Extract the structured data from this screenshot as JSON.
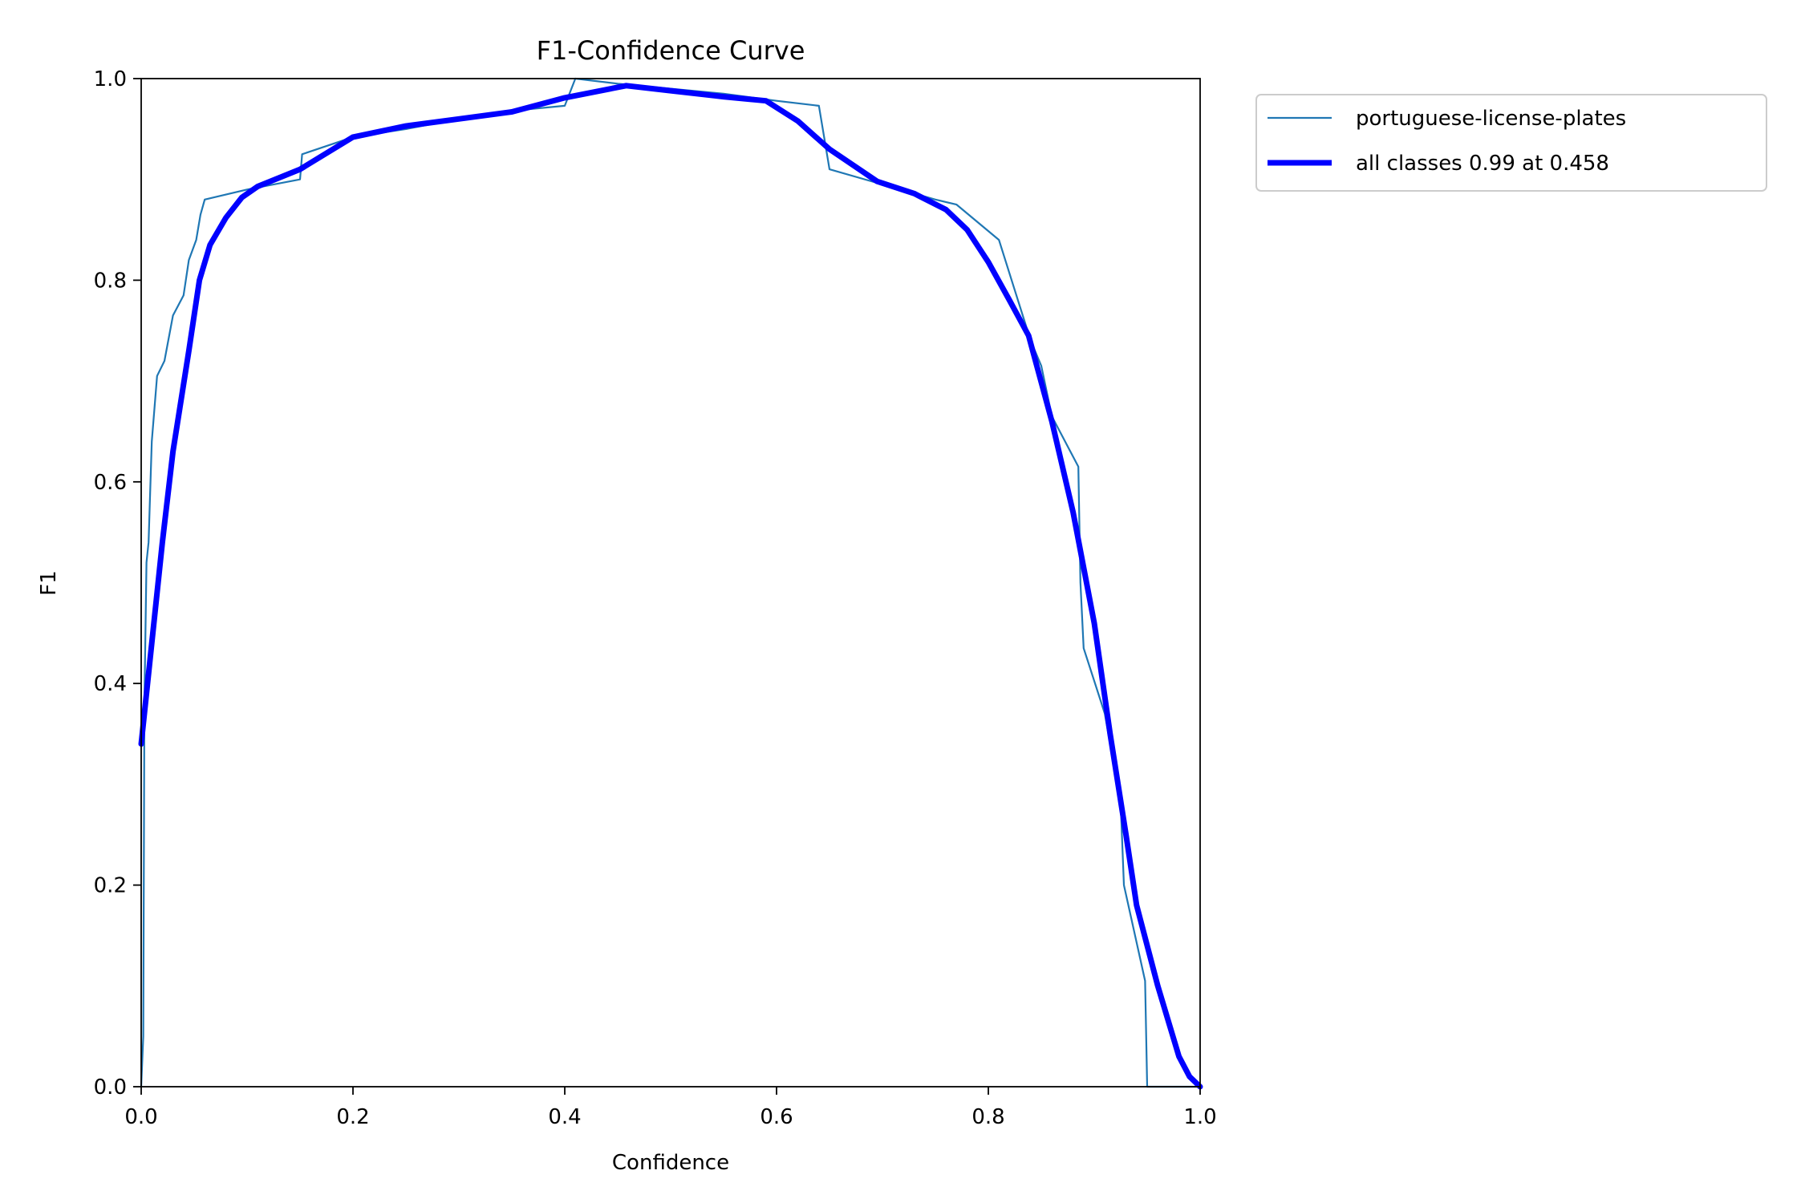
{
  "chart_data": {
    "type": "line",
    "title": "F1-Confidence Curve",
    "xlabel": "Confidence",
    "ylabel": "F1",
    "xlim": [
      0.0,
      1.0
    ],
    "ylim": [
      0.0,
      1.0
    ],
    "xticks": [
      0.0,
      0.2,
      0.4,
      0.6,
      0.8,
      1.0
    ],
    "yticks": [
      0.0,
      0.2,
      0.4,
      0.6,
      0.8,
      1.0
    ],
    "tick_labels_x": [
      "0.0",
      "0.2",
      "0.4",
      "0.6",
      "0.8",
      "1.0"
    ],
    "tick_labels_y": [
      "0.0",
      "0.2",
      "0.4",
      "0.6",
      "0.8",
      "1.0"
    ],
    "grid": false,
    "legend": {
      "placement": "outside-top-right"
    },
    "series": [
      {
        "name": "portuguese-license-plates",
        "color": "#1f77b4",
        "style": "thin",
        "points": [
          [
            0.0,
            0.0
          ],
          [
            0.002,
            0.05
          ],
          [
            0.003,
            0.38
          ],
          [
            0.005,
            0.52
          ],
          [
            0.007,
            0.54
          ],
          [
            0.01,
            0.64
          ],
          [
            0.015,
            0.705
          ],
          [
            0.022,
            0.72
          ],
          [
            0.03,
            0.765
          ],
          [
            0.04,
            0.785
          ],
          [
            0.045,
            0.82
          ],
          [
            0.052,
            0.84
          ],
          [
            0.056,
            0.865
          ],
          [
            0.06,
            0.88
          ],
          [
            0.1,
            0.89
          ],
          [
            0.15,
            0.9
          ],
          [
            0.152,
            0.925
          ],
          [
            0.2,
            0.942
          ],
          [
            0.25,
            0.95
          ],
          [
            0.3,
            0.96
          ],
          [
            0.35,
            0.968
          ],
          [
            0.4,
            0.973
          ],
          [
            0.41,
            1.0
          ],
          [
            0.45,
            0.995
          ],
          [
            0.5,
            0.99
          ],
          [
            0.55,
            0.985
          ],
          [
            0.6,
            0.978
          ],
          [
            0.64,
            0.973
          ],
          [
            0.65,
            0.91
          ],
          [
            0.7,
            0.895
          ],
          [
            0.75,
            0.88
          ],
          [
            0.77,
            0.875
          ],
          [
            0.81,
            0.84
          ],
          [
            0.84,
            0.74
          ],
          [
            0.85,
            0.715
          ],
          [
            0.86,
            0.665
          ],
          [
            0.885,
            0.615
          ],
          [
            0.887,
            0.5
          ],
          [
            0.89,
            0.435
          ],
          [
            0.91,
            0.37
          ],
          [
            0.925,
            0.28
          ],
          [
            0.928,
            0.2
          ],
          [
            0.948,
            0.105
          ],
          [
            0.95,
            0.0
          ],
          [
            1.0,
            0.0
          ]
        ]
      },
      {
        "name": "all classes 0.99 at 0.458",
        "color": "#0000ff",
        "style": "thick",
        "points": [
          [
            0.0,
            0.34
          ],
          [
            0.01,
            0.44
          ],
          [
            0.02,
            0.54
          ],
          [
            0.03,
            0.63
          ],
          [
            0.045,
            0.73
          ],
          [
            0.055,
            0.8
          ],
          [
            0.065,
            0.835
          ],
          [
            0.08,
            0.862
          ],
          [
            0.095,
            0.882
          ],
          [
            0.11,
            0.893
          ],
          [
            0.15,
            0.91
          ],
          [
            0.2,
            0.942
          ],
          [
            0.25,
            0.953
          ],
          [
            0.3,
            0.96
          ],
          [
            0.35,
            0.967
          ],
          [
            0.4,
            0.981
          ],
          [
            0.458,
            0.993
          ],
          [
            0.5,
            0.988
          ],
          [
            0.55,
            0.982
          ],
          [
            0.59,
            0.978
          ],
          [
            0.62,
            0.958
          ],
          [
            0.65,
            0.93
          ],
          [
            0.695,
            0.898
          ],
          [
            0.73,
            0.886
          ],
          [
            0.76,
            0.87
          ],
          [
            0.78,
            0.85
          ],
          [
            0.8,
            0.818
          ],
          [
            0.82,
            0.78
          ],
          [
            0.838,
            0.745
          ],
          [
            0.86,
            0.66
          ],
          [
            0.88,
            0.57
          ],
          [
            0.9,
            0.46
          ],
          [
            0.915,
            0.35
          ],
          [
            0.93,
            0.25
          ],
          [
            0.94,
            0.18
          ],
          [
            0.96,
            0.1
          ],
          [
            0.98,
            0.03
          ],
          [
            0.99,
            0.01
          ],
          [
            1.0,
            0.0
          ]
        ]
      }
    ]
  }
}
